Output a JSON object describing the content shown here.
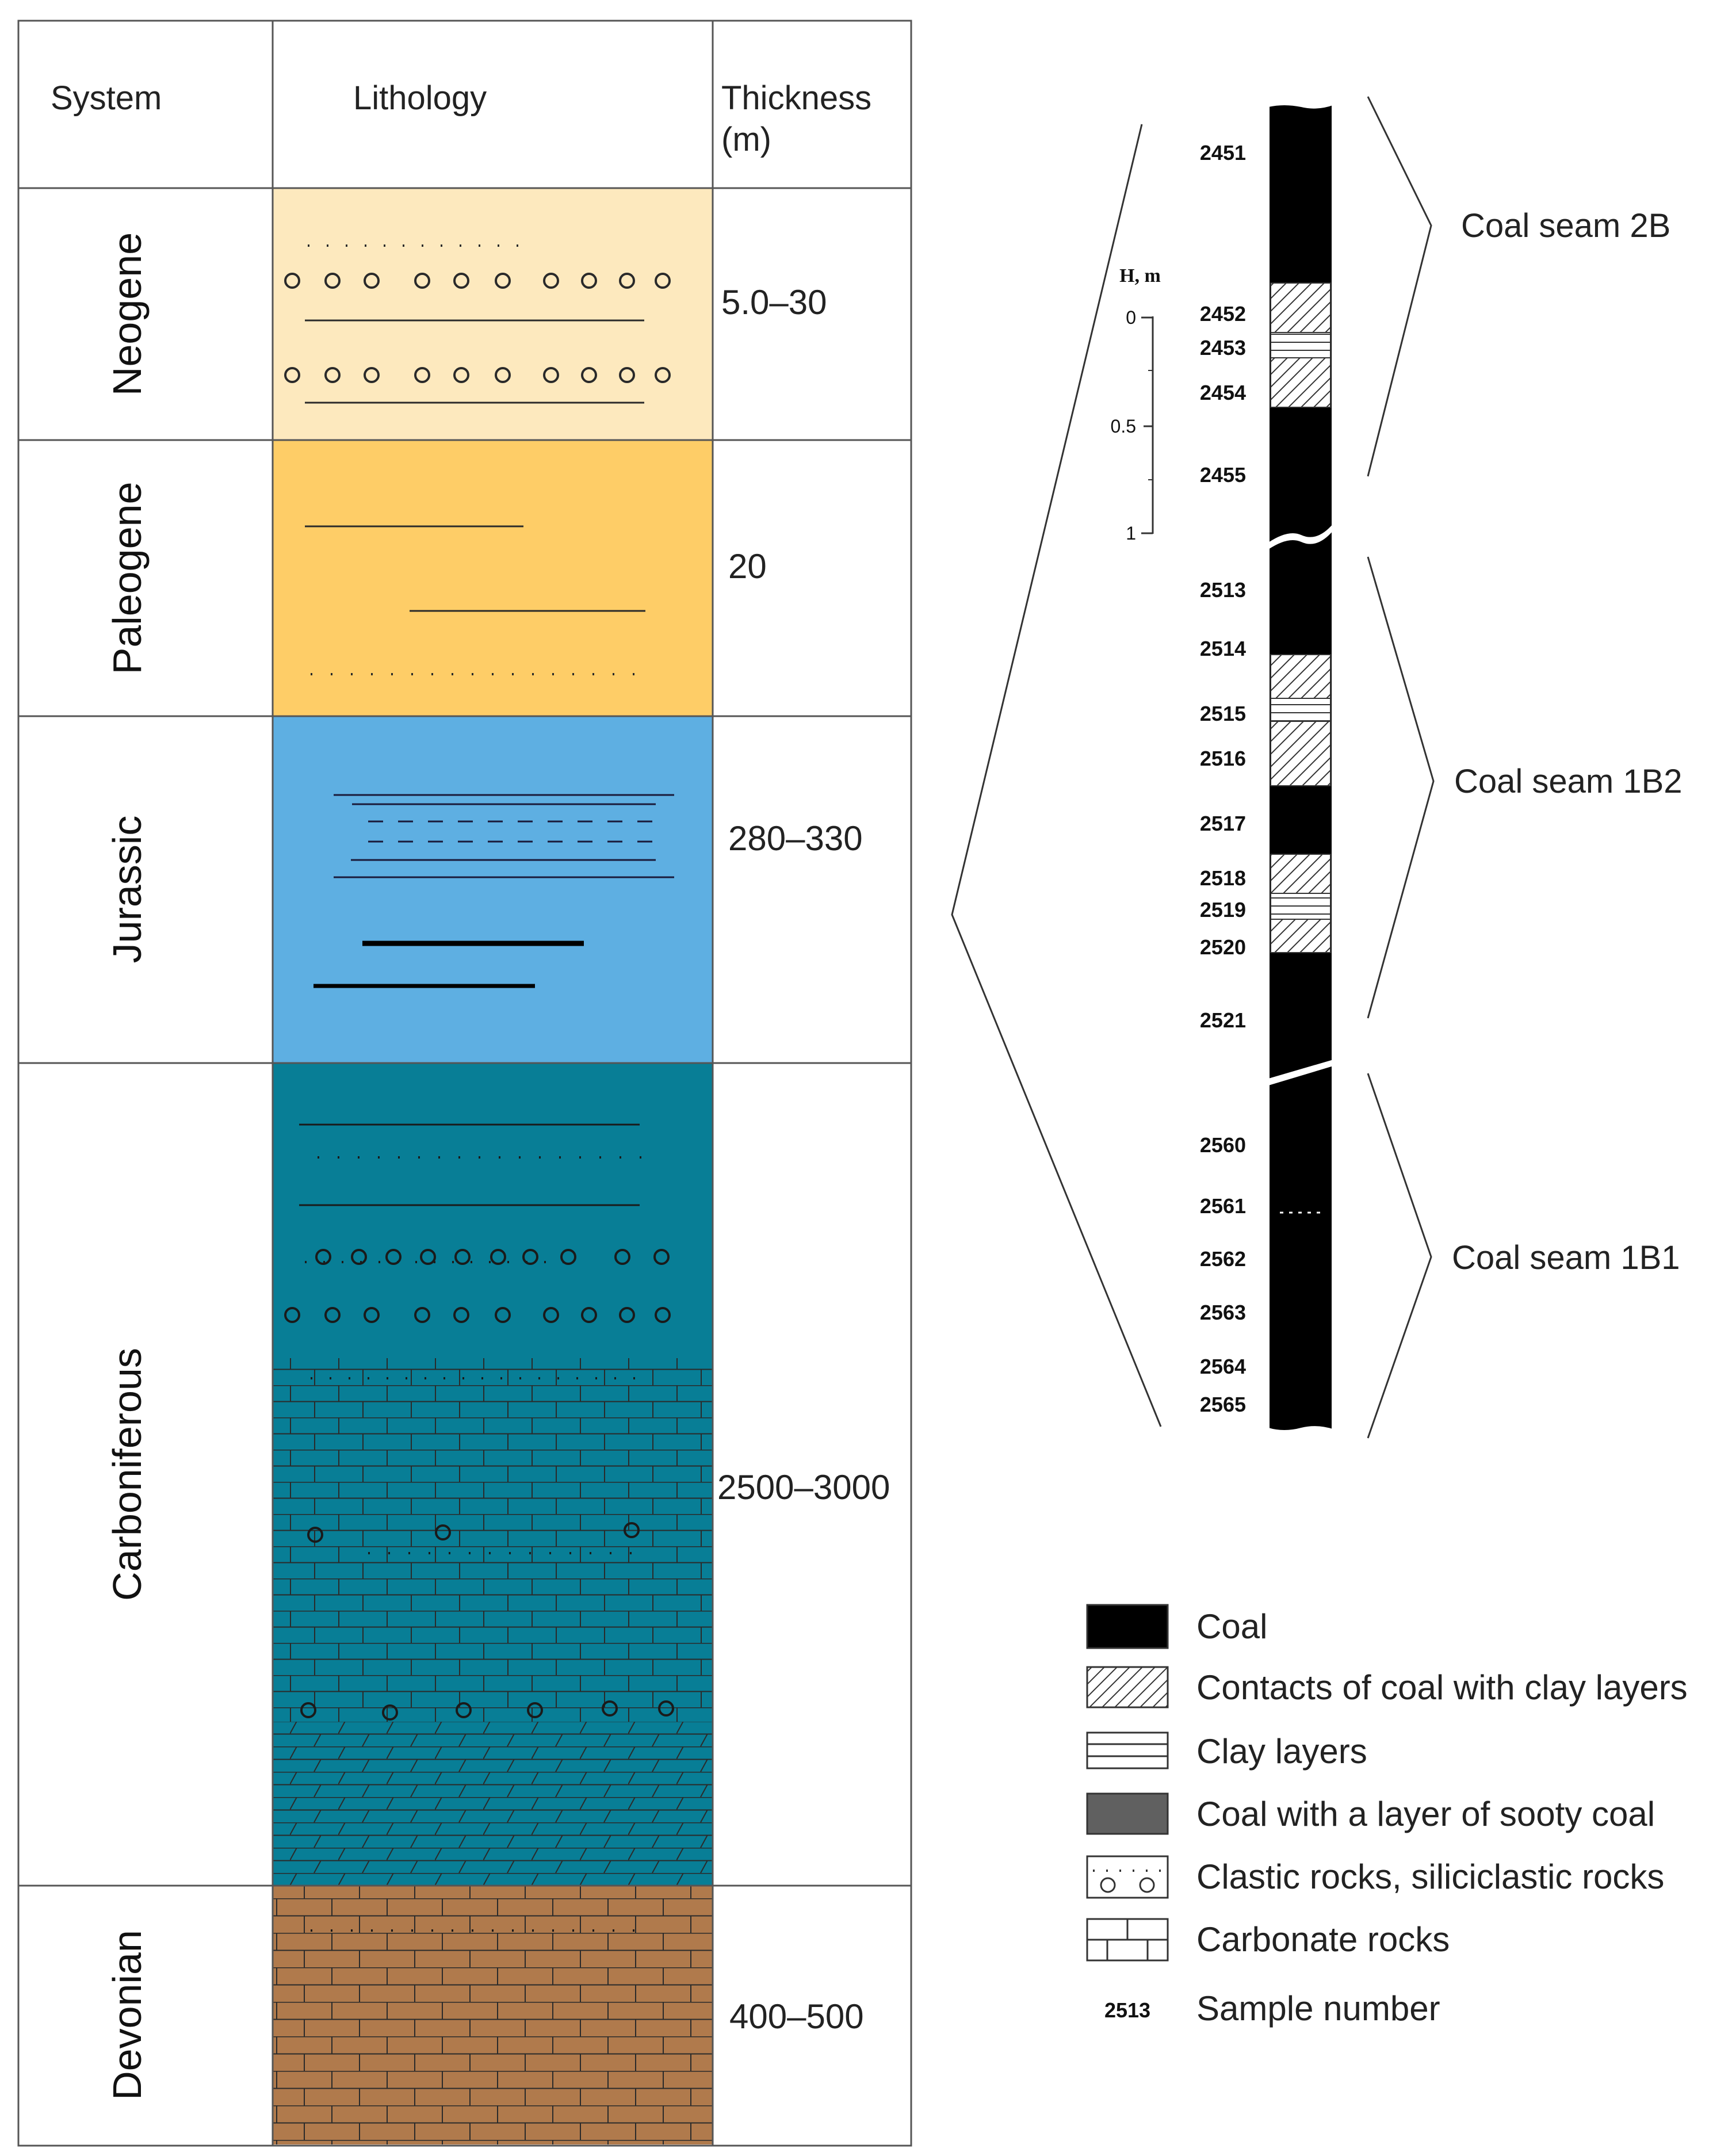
{
  "column": {
    "headers": {
      "system": "System",
      "lithology": "Lithology",
      "thickness_line1": "Thickness",
      "thickness_line2": "(m)"
    },
    "rows": [
      {
        "system": "Neogene",
        "thickness": "5.0–30",
        "color": "#FDE9BE"
      },
      {
        "system": "Paleogene",
        "thickness": "20",
        "color": "#FECD67"
      },
      {
        "system": "Jurassic",
        "thickness": "280–330",
        "color": "#5EAFE2"
      },
      {
        "system": "Carboniferous",
        "thickness": "2500–3000",
        "color": "#087E96"
      },
      {
        "system": "Devonian",
        "thickness": "400–500",
        "color": "#B07A4C"
      }
    ]
  },
  "profile": {
    "scale": {
      "title": "H, m",
      "ticks": [
        "0",
        "0.5",
        "1"
      ]
    },
    "samples": [
      "2451",
      "2452",
      "2453",
      "2454",
      "2455",
      "2513",
      "2514",
      "2515",
      "2516",
      "2517",
      "2518",
      "2519",
      "2520",
      "2521",
      "2560",
      "2561",
      "2562",
      "2563",
      "2564",
      "2565"
    ],
    "seams": [
      "Coal seam 2B",
      "Coal seam 1B2",
      "Coal seam 1B1"
    ]
  },
  "legend": {
    "items": [
      {
        "id": "coal",
        "label": "Coal",
        "color": "#000000"
      },
      {
        "id": "contacts",
        "label": "Contacts of coal with clay layers"
      },
      {
        "id": "clay",
        "label": "Clay layers"
      },
      {
        "id": "sooty",
        "label": "Coal with a layer of sooty coal",
        "color": "#606060"
      },
      {
        "id": "clastic",
        "label": "Clastic rocks, siliciclastic rocks"
      },
      {
        "id": "carbonate",
        "label": "Carbonate rocks"
      },
      {
        "id": "sample",
        "label": "Sample number",
        "sample_code": "2513"
      }
    ]
  }
}
